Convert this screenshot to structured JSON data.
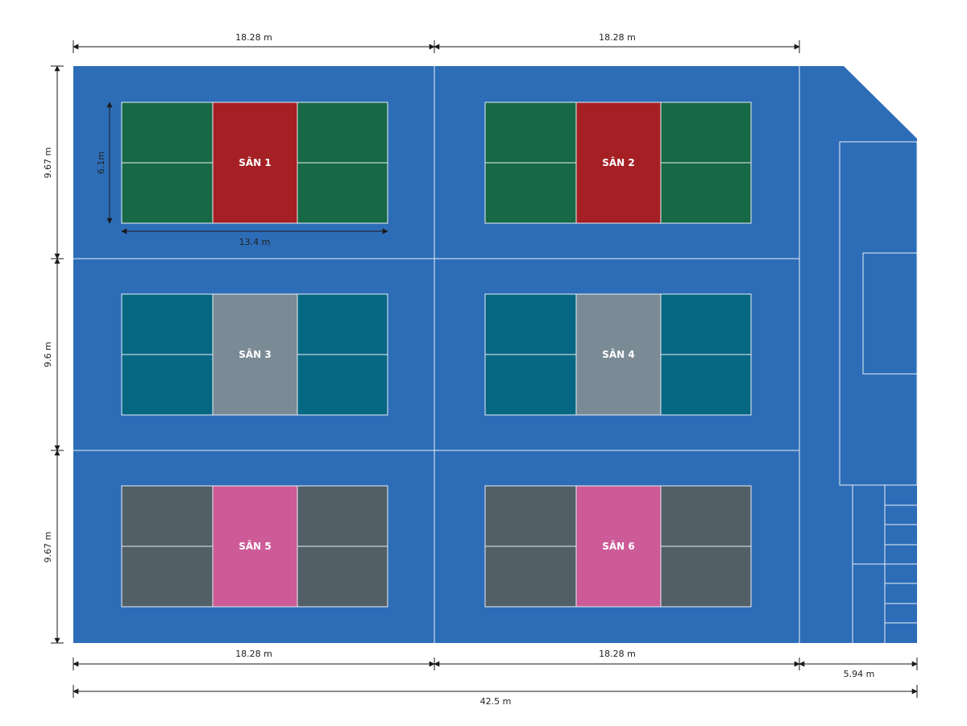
{
  "colors": {
    "floor": "#2d6db7",
    "line": "#e9eef5",
    "dim_line": "#1a1a1a",
    "courts": {
      "green_side": "#176845",
      "red_center": "#a52024",
      "teal_side": "#066783",
      "grey_center": "#7a8b96",
      "slate_side": "#525f67",
      "pink_center": "#cc5b97"
    }
  },
  "courts": [
    {
      "label": "SÂN 1",
      "side_color": "#176845",
      "center_color": "#a52024"
    },
    {
      "label": "SÂN 2",
      "side_color": "#176845",
      "center_color": "#a52024"
    },
    {
      "label": "SÂN 3",
      "side_color": "#066783",
      "center_color": "#7a8b96"
    },
    {
      "label": "SÂN 4",
      "side_color": "#066783",
      "center_color": "#7a8b96"
    },
    {
      "label": "SÂN 5",
      "side_color": "#525f67",
      "center_color": "#cc5b97"
    },
    {
      "label": "SÂN 6",
      "side_color": "#525f67",
      "center_color": "#cc5b97"
    }
  ],
  "dimensions": {
    "top_left": "18.28 m",
    "top_right": "18.28 m",
    "left_row1": "9.67 m",
    "left_row2": "9.6 m",
    "left_row3": "9.67 m",
    "court_height": "6.1m",
    "court_width": "13.4 m",
    "bottom_left": "18.28 m",
    "bottom_right": "18.28 m",
    "bottom_side": "5.94 m",
    "total": "42.5 m"
  }
}
